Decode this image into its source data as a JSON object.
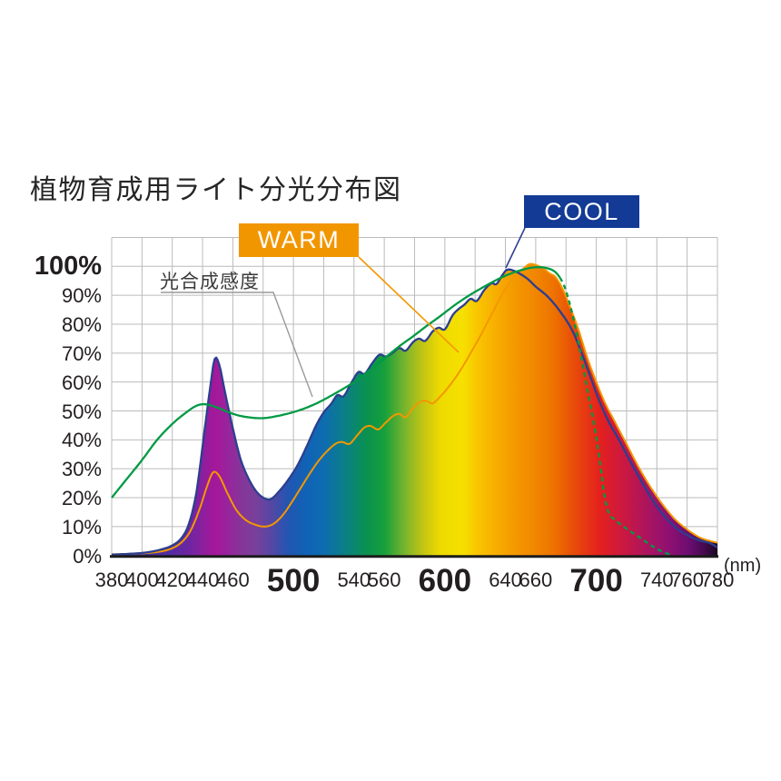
{
  "title": "植物育成用ライト分光分布図",
  "labels": {
    "warm": "WARM",
    "cool": "COOL",
    "photosynthesis": "光合成感度",
    "unit": "(nm)"
  },
  "colors": {
    "warm_box": "#f29600",
    "cool_box": "#133a94",
    "warm_curve": "#f39800",
    "cool_curve": "#2c3f8f",
    "green_curve": "#009a44",
    "grid": "#bbbbbb",
    "axis": "#1c1c1c",
    "leader_gray": "#9a9a9a",
    "text": "#231f20"
  },
  "chart_data": {
    "type": "area",
    "title": "植物育成用ライト分光分布図",
    "xlabel": "(nm)",
    "ylabel": "%",
    "x_range": [
      380,
      780
    ],
    "y_range": [
      0,
      100
    ],
    "grid": true,
    "x_gridline_step_nm": 20,
    "y_gridline_step_pct": 10,
    "y_ticks": [
      {
        "v": 0,
        "label": "0%"
      },
      {
        "v": 10,
        "label": "10%"
      },
      {
        "v": 20,
        "label": "20%"
      },
      {
        "v": 30,
        "label": "30%"
      },
      {
        "v": 40,
        "label": "40%"
      },
      {
        "v": 50,
        "label": "50%"
      },
      {
        "v": 60,
        "label": "60%"
      },
      {
        "v": 70,
        "label": "70%"
      },
      {
        "v": 80,
        "label": "80%"
      },
      {
        "v": 90,
        "label": "90%"
      },
      {
        "v": 100,
        "label": "100%",
        "major": true
      }
    ],
    "x_ticks": [
      {
        "v": 380,
        "label": "380"
      },
      {
        "v": 400,
        "label": "400"
      },
      {
        "v": 420,
        "label": "420"
      },
      {
        "v": 440,
        "label": "440"
      },
      {
        "v": 460,
        "label": "460"
      },
      {
        "v": 500,
        "label": "500",
        "major": true
      },
      {
        "v": 540,
        "label": "540"
      },
      {
        "v": 560,
        "label": "560"
      },
      {
        "v": 600,
        "label": "600",
        "major": true
      },
      {
        "v": 640,
        "label": "640"
      },
      {
        "v": 660,
        "label": "660"
      },
      {
        "v": 700,
        "label": "700",
        "major": true
      },
      {
        "v": 740,
        "label": "740"
      },
      {
        "v": 760,
        "label": "760"
      },
      {
        "v": 780,
        "label": "780"
      }
    ],
    "fill_rule": "spectrum area = max(COOL, WARM), filled with visible-spectrum gradient",
    "series": [
      {
        "id": "cool",
        "name": "COOL",
        "color": "#2c3f8f",
        "style": "solid",
        "points": [
          [
            380,
            0.3
          ],
          [
            392,
            0.6
          ],
          [
            402,
            1
          ],
          [
            412,
            2
          ],
          [
            420,
            3.5
          ],
          [
            426,
            6
          ],
          [
            431,
            11
          ],
          [
            436,
            22
          ],
          [
            441,
            42
          ],
          [
            445,
            58
          ],
          [
            448,
            68
          ],
          [
            451,
            66
          ],
          [
            455,
            56
          ],
          [
            460,
            44
          ],
          [
            465,
            33.5
          ],
          [
            470,
            27
          ],
          [
            475,
            22.5
          ],
          [
            480,
            20
          ],
          [
            485,
            19.5
          ],
          [
            491,
            22.5
          ],
          [
            497,
            26.5
          ],
          [
            503,
            31.5
          ],
          [
            509,
            38
          ],
          [
            515,
            45
          ],
          [
            520,
            49.5
          ],
          [
            525,
            52.5
          ],
          [
            529,
            55.5
          ],
          [
            533,
            55
          ],
          [
            538,
            59.5
          ],
          [
            543,
            63.5
          ],
          [
            547,
            62.8
          ],
          [
            552,
            66.5
          ],
          [
            557,
            69.5
          ],
          [
            561,
            68.8
          ],
          [
            566,
            70.3
          ],
          [
            570,
            71.8
          ],
          [
            574,
            70.8
          ],
          [
            579,
            73.8
          ],
          [
            583,
            75
          ],
          [
            587,
            74.2
          ],
          [
            592,
            77.5
          ],
          [
            596,
            78.8
          ],
          [
            600,
            78.2
          ],
          [
            605,
            83
          ],
          [
            609,
            85.2
          ],
          [
            613,
            86.8
          ],
          [
            617,
            88.8
          ],
          [
            621,
            88
          ],
          [
            626,
            91.8
          ],
          [
            631,
            94.2
          ],
          [
            634,
            93.8
          ],
          [
            638,
            97
          ],
          [
            641,
            98.8
          ],
          [
            645,
            98.6
          ],
          [
            650,
            97.3
          ],
          [
            655,
            95.5
          ],
          [
            660,
            93
          ],
          [
            668,
            89.5
          ],
          [
            676,
            84.5
          ],
          [
            684,
            78
          ],
          [
            690,
            70.5
          ],
          [
            696,
            62
          ],
          [
            702,
            53.5
          ],
          [
            708,
            46.5
          ],
          [
            715,
            40
          ],
          [
            722,
            33
          ],
          [
            730,
            25.5
          ],
          [
            738,
            18.5
          ],
          [
            746,
            13
          ],
          [
            754,
            9
          ],
          [
            762,
            6.5
          ],
          [
            769,
            5.1
          ],
          [
            775,
            4.3
          ],
          [
            780,
            2.8
          ]
        ]
      },
      {
        "id": "warm",
        "name": "WARM",
        "color": "#f39800",
        "style": "solid",
        "points": [
          [
            380,
            0.4
          ],
          [
            398,
            0.7
          ],
          [
            410,
            1.2
          ],
          [
            419,
            2.3
          ],
          [
            426,
            4.5
          ],
          [
            432,
            8.5
          ],
          [
            438,
            16
          ],
          [
            443,
            24
          ],
          [
            447,
            28.8
          ],
          [
            451,
            27.5
          ],
          [
            456,
            22
          ],
          [
            462,
            16
          ],
          [
            468,
            12.5
          ],
          [
            474,
            10.8
          ],
          [
            481,
            10
          ],
          [
            487,
            11
          ],
          [
            493,
            14
          ],
          [
            499,
            18.5
          ],
          [
            505,
            23.5
          ],
          [
            511,
            28.5
          ],
          [
            517,
            33
          ],
          [
            523,
            36.5
          ],
          [
            528,
            38.7
          ],
          [
            532,
            39.3
          ],
          [
            537,
            38.6
          ],
          [
            542,
            41.5
          ],
          [
            547,
            44.3
          ],
          [
            551,
            44.8
          ],
          [
            556,
            43.6
          ],
          [
            561,
            46
          ],
          [
            566,
            48.3
          ],
          [
            570,
            49
          ],
          [
            574,
            47.8
          ],
          [
            579,
            51
          ],
          [
            584,
            53.2
          ],
          [
            588,
            53.4
          ],
          [
            592,
            52.6
          ],
          [
            597,
            55
          ],
          [
            602,
            58
          ],
          [
            607,
            61.5
          ],
          [
            612,
            65.5
          ],
          [
            617,
            70
          ],
          [
            623,
            75.5
          ],
          [
            629,
            81.5
          ],
          [
            635,
            87.5
          ],
          [
            641,
            93
          ],
          [
            647,
            97
          ],
          [
            652,
            99.3
          ],
          [
            656,
            100.8
          ],
          [
            661,
            100.3
          ],
          [
            666,
            99
          ],
          [
            669,
            97.6
          ],
          [
            673,
            96.4
          ],
          [
            678,
            92
          ],
          [
            683,
            85.5
          ],
          [
            688,
            78.5
          ],
          [
            694,
            68.5
          ],
          [
            700,
            60
          ],
          [
            706,
            52.5
          ],
          [
            712,
            46.5
          ],
          [
            720,
            38.5
          ],
          [
            728,
            30.5
          ],
          [
            736,
            23.5
          ],
          [
            744,
            17.5
          ],
          [
            752,
            12.5
          ],
          [
            760,
            9
          ],
          [
            768,
            6.3
          ],
          [
            774,
            5.2
          ],
          [
            780,
            4.4
          ]
        ]
      },
      {
        "id": "photosynthesis",
        "name": "光合成感度",
        "color": "#009a44",
        "style": "solid-then-dashed",
        "dash_from_nm": 676,
        "points": [
          [
            380,
            20
          ],
          [
            390,
            26.5
          ],
          [
            400,
            33
          ],
          [
            410,
            40
          ],
          [
            420,
            45.5
          ],
          [
            428,
            49
          ],
          [
            436,
            51.8
          ],
          [
            442,
            52.3
          ],
          [
            449,
            51.3
          ],
          [
            456,
            49.8
          ],
          [
            464,
            48.4
          ],
          [
            472,
            47.7
          ],
          [
            480,
            47.5
          ],
          [
            489,
            48.2
          ],
          [
            498,
            49.3
          ],
          [
            507,
            50.8
          ],
          [
            516,
            52.8
          ],
          [
            525,
            55.3
          ],
          [
            534,
            58
          ],
          [
            543,
            61
          ],
          [
            552,
            64.8
          ],
          [
            561,
            68.6
          ],
          [
            570,
            72.4
          ],
          [
            579,
            75.8
          ],
          [
            588,
            79.4
          ],
          [
            597,
            82.8
          ],
          [
            606,
            86.4
          ],
          [
            615,
            89.6
          ],
          [
            624,
            92.4
          ],
          [
            633,
            95
          ],
          [
            642,
            97.2
          ],
          [
            651,
            98.8
          ],
          [
            660,
            99.7
          ],
          [
            668,
            99.3
          ],
          [
            674,
            97.5
          ],
          [
            679,
            93
          ],
          [
            683,
            86
          ],
          [
            687,
            77
          ],
          [
            691,
            66
          ],
          [
            695,
            55
          ],
          [
            699,
            44
          ],
          [
            702,
            34
          ],
          [
            705,
            22
          ],
          [
            708,
            15
          ],
          [
            712,
            12.5
          ],
          [
            718,
            10
          ],
          [
            725,
            7.5
          ],
          [
            732,
            5
          ],
          [
            739,
            2.6
          ],
          [
            745,
            1
          ],
          [
            750,
            0.3
          ]
        ]
      }
    ],
    "spectrum_gradient": [
      [
        380,
        "#34218e"
      ],
      [
        392,
        "#3c2b99"
      ],
      [
        405,
        "#4430a1"
      ],
      [
        418,
        "#512da3"
      ],
      [
        430,
        "#6b26a1"
      ],
      [
        440,
        "#8b1f9e"
      ],
      [
        448,
        "#a5179a"
      ],
      [
        456,
        "#99239c"
      ],
      [
        466,
        "#853699"
      ],
      [
        475,
        "#7a3f9b"
      ],
      [
        487,
        "#4f49a5"
      ],
      [
        496,
        "#2355b1"
      ],
      [
        508,
        "#1062b6"
      ],
      [
        520,
        "#0e6cb0"
      ],
      [
        534,
        "#0b7f86"
      ],
      [
        548,
        "#0a9150"
      ],
      [
        560,
        "#169f3c"
      ],
      [
        574,
        "#7cb52c"
      ],
      [
        586,
        "#c5c513"
      ],
      [
        597,
        "#eeda00"
      ],
      [
        612,
        "#f6e000"
      ],
      [
        622,
        "#f9c400"
      ],
      [
        635,
        "#f7ab00"
      ],
      [
        650,
        "#f39300"
      ],
      [
        662,
        "#f08300"
      ],
      [
        672,
        "#ee7200"
      ],
      [
        682,
        "#e95506"
      ],
      [
        692,
        "#e63a12"
      ],
      [
        702,
        "#e4211d"
      ],
      [
        714,
        "#d21a39"
      ],
      [
        726,
        "#bb1650"
      ],
      [
        738,
        "#a21366"
      ],
      [
        750,
        "#8a1072"
      ],
      [
        762,
        "#690d6f"
      ],
      [
        772,
        "#43094c"
      ],
      [
        780,
        "#190523"
      ]
    ]
  }
}
